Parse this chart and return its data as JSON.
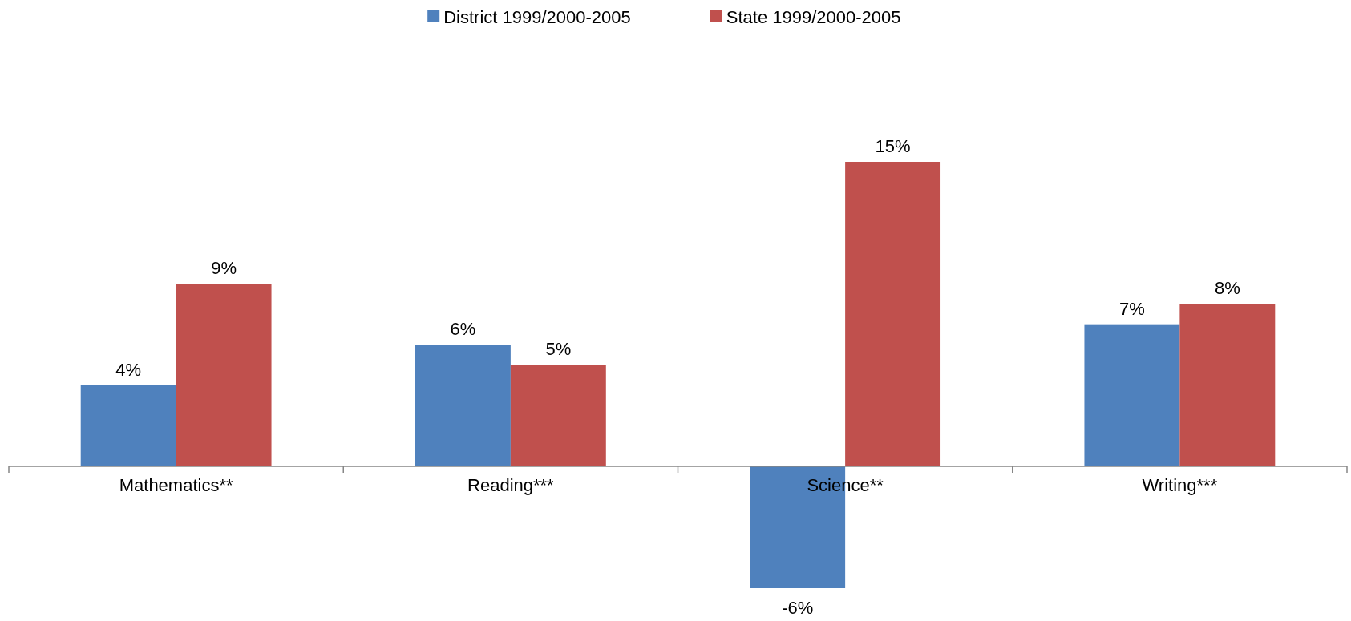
{
  "chart_data": {
    "type": "bar",
    "categories": [
      "Mathematics**",
      "Reading***",
      "Science**",
      "Writing***"
    ],
    "series": [
      {
        "name": "District 1999/2000-2005",
        "color": "#4f81bd",
        "values": [
          4,
          6,
          -6,
          7
        ],
        "value_labels": [
          "4%",
          "6%",
          "-6%",
          "7%"
        ]
      },
      {
        "name": "State 1999/2000-2005",
        "color": "#c0504d",
        "values": [
          9,
          5,
          15,
          8
        ],
        "value_labels": [
          "9%",
          "5%",
          "15%",
          "8%"
        ]
      }
    ],
    "legend": "top"
  }
}
